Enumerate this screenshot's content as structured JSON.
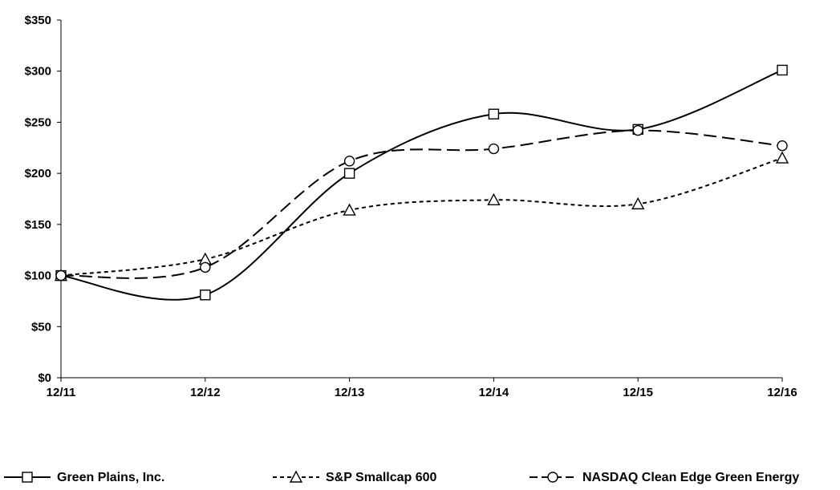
{
  "chart_data": {
    "type": "line",
    "title": "",
    "xlabel": "",
    "ylabel": "",
    "categories": [
      "12/11",
      "12/12",
      "12/13",
      "12/14",
      "12/15",
      "12/16"
    ],
    "y_ticks": [
      "$0",
      "$50",
      "$100",
      "$150",
      "$200",
      "$250",
      "$300",
      "$350"
    ],
    "ylim": [
      0,
      350
    ],
    "grid": false,
    "legend_position": "bottom",
    "series": [
      {
        "name": "Green Plains, Inc.",
        "values": [
          100,
          81,
          200,
          258,
          243,
          301
        ],
        "marker": "square",
        "line_style": "solid",
        "color": "#000000"
      },
      {
        "name": "S&P Smallcap 600",
        "values": [
          100,
          116,
          164,
          174,
          170,
          215
        ],
        "marker": "triangle",
        "line_style": "short-dash",
        "color": "#000000"
      },
      {
        "name": "NASDAQ Clean Edge Green Energy",
        "values": [
          100,
          108,
          212,
          224,
          242,
          227
        ],
        "marker": "circle",
        "line_style": "long-dash",
        "color": "#000000"
      }
    ]
  }
}
